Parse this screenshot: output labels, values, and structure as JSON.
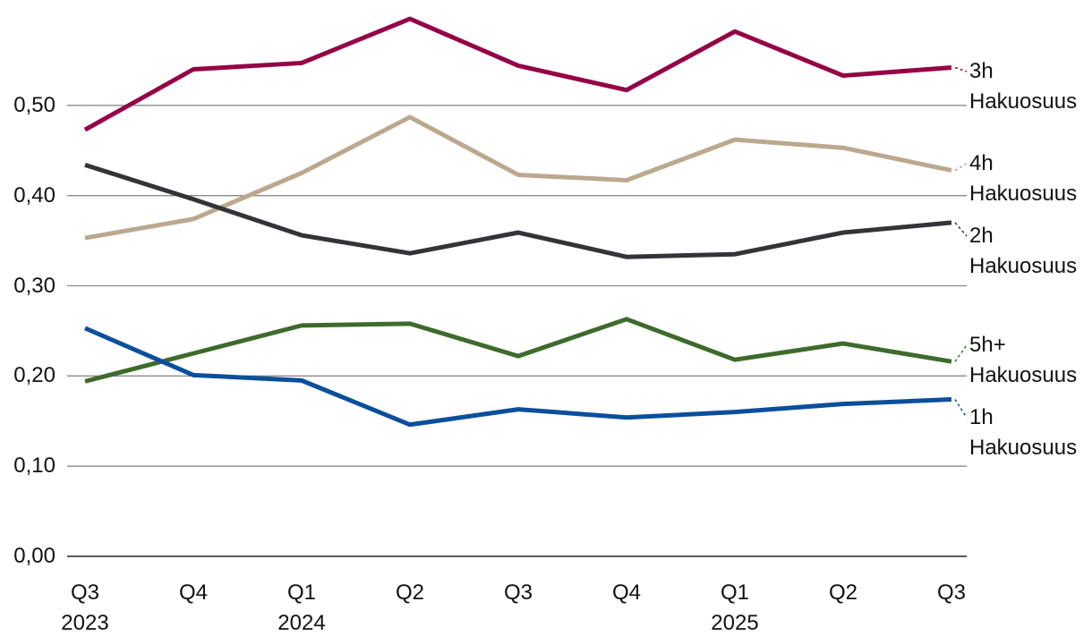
{
  "chart_data": {
    "type": "line",
    "categories": [
      "Q3 2023",
      "Q4",
      "Q1 2024",
      "Q2",
      "Q3",
      "Q4",
      "Q1 2025",
      "Q2",
      "Q3"
    ],
    "series": [
      {
        "name": "3h Hakuosuus",
        "color": "#950046",
        "values": [
          0.473,
          0.54,
          0.547,
          0.596,
          0.544,
          0.517,
          0.582,
          0.533,
          0.542
        ]
      },
      {
        "name": "4h Hakuosuus",
        "color": "#bba88e",
        "values": [
          0.353,
          0.374,
          0.425,
          0.487,
          0.423,
          0.417,
          0.462,
          0.453,
          0.428
        ]
      },
      {
        "name": "2h Hakuosuus",
        "color": "#333438",
        "values": [
          0.434,
          0.396,
          0.356,
          0.336,
          0.359,
          0.332,
          0.335,
          0.359,
          0.37
        ]
      },
      {
        "name": "5h+ Hakuosuus",
        "color": "#3e6b2b",
        "values": [
          0.194,
          0.225,
          0.256,
          0.258,
          0.222,
          0.263,
          0.218,
          0.236,
          0.216
        ]
      },
      {
        "name": "1h Hakuosuus",
        "color": "#0b4f9c",
        "values": [
          0.253,
          0.201,
          0.195,
          0.146,
          0.163,
          0.154,
          0.16,
          0.169,
          0.174
        ]
      }
    ],
    "ylim": [
      0,
      0.6
    ],
    "yticks": [
      {
        "value": 0,
        "label": "0,00"
      },
      {
        "value": 0.1,
        "label": "0,10"
      },
      {
        "value": 0.2,
        "label": "0,20"
      },
      {
        "value": 0.3,
        "label": "0,30"
      },
      {
        "value": 0.4,
        "label": "0,40"
      },
      {
        "value": 0.5,
        "label": "0,50"
      }
    ],
    "grid": true
  }
}
